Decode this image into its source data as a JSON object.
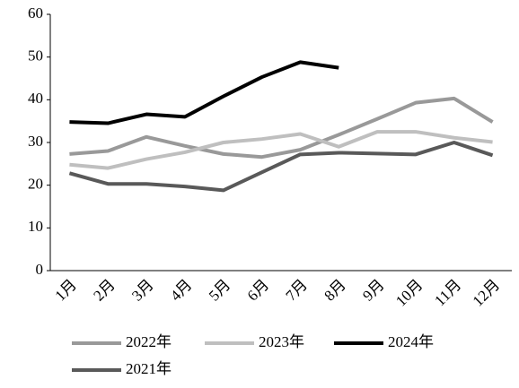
{
  "chart_data": {
    "type": "line",
    "categories": [
      "1月",
      "2月",
      "3月",
      "4月",
      "5月",
      "6月",
      "7月",
      "8月",
      "9月",
      "10月",
      "11月",
      "12月"
    ],
    "series": [
      {
        "name": "2022年",
        "color": "#999999",
        "values": [
          27.3,
          28.0,
          31.3,
          29.2,
          27.3,
          26.6,
          28.3,
          31.8,
          35.5,
          39.3,
          40.3,
          34.8
        ]
      },
      {
        "name": "2023年",
        "color": "#bfbfbf",
        "values": [
          24.8,
          24.0,
          26.1,
          27.7,
          30.0,
          30.8,
          32.0,
          29.0,
          32.5,
          32.5,
          31.1,
          30.1
        ]
      },
      {
        "name": "2024年",
        "color": "#000000",
        "values": [
          34.8,
          34.5,
          36.6,
          36.0,
          40.8,
          45.3,
          48.8,
          47.5,
          null,
          null,
          null,
          null
        ]
      },
      {
        "name": "2021年",
        "color": "#595959",
        "values": [
          22.8,
          20.3,
          20.3,
          19.7,
          18.8,
          23.0,
          27.2,
          27.6,
          27.4,
          27.2,
          30.0,
          27.0
        ]
      }
    ],
    "ylim": [
      0,
      60
    ],
    "yticks": [
      0,
      10,
      20,
      30,
      40,
      50,
      60
    ],
    "grid": false
  }
}
